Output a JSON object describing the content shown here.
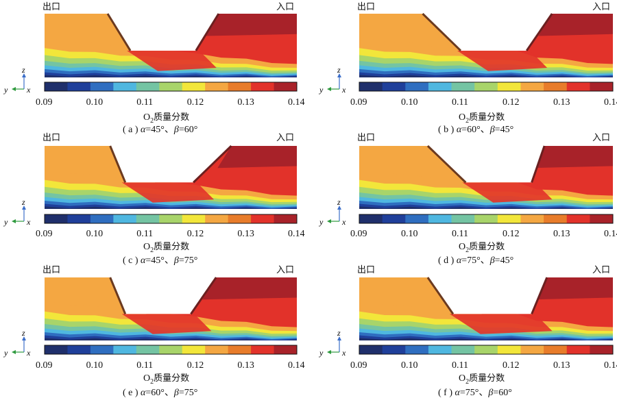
{
  "colors": [
    "#1f2f6b",
    "#1f3f9a",
    "#2f6ec0",
    "#4fb7e0",
    "#74c4a3",
    "#a8d46a",
    "#f2e63a",
    "#f4a742",
    "#e87c2a",
    "#e2322a",
    "#a82229"
  ],
  "colorbar": {
    "ticks": [
      "0.09",
      "0.10",
      "0.11",
      "0.12",
      "0.13",
      "0.14"
    ],
    "title_main": "O",
    "title_sub": "2",
    "title_rest": "质量分数"
  },
  "labels": {
    "outlet": "出口",
    "inlet": "入口"
  },
  "axes_icon": {
    "z": "z",
    "y": "y",
    "x": "x"
  },
  "panels": [
    {
      "id": "a",
      "caption_prefix": "( a ) ",
      "alpha_symbol": "α",
      "alpha_value": "=45°、",
      "beta_symbol": "β",
      "beta_value": "=60°"
    },
    {
      "id": "b",
      "caption_prefix": "( b ) ",
      "alpha_symbol": "α",
      "alpha_value": "=60°、",
      "beta_symbol": "β",
      "beta_value": "=45°"
    },
    {
      "id": "c",
      "caption_prefix": "( c ) ",
      "alpha_symbol": "α",
      "alpha_value": "=45°、",
      "beta_symbol": "β",
      "beta_value": "=75°"
    },
    {
      "id": "d",
      "caption_prefix": "( d ) ",
      "alpha_symbol": "α",
      "alpha_value": "=75°、",
      "beta_symbol": "β",
      "beta_value": "=45°"
    },
    {
      "id": "e",
      "caption_prefix": "( e ) ",
      "alpha_symbol": "α",
      "alpha_value": "=60°、",
      "beta_symbol": "β",
      "beta_value": "=75°"
    },
    {
      "id": "f",
      "caption_prefix": "( f ) ",
      "alpha_symbol": "α",
      "alpha_value": "=75°、",
      "beta_symbol": "β",
      "beta_value": "=60°"
    }
  ]
}
